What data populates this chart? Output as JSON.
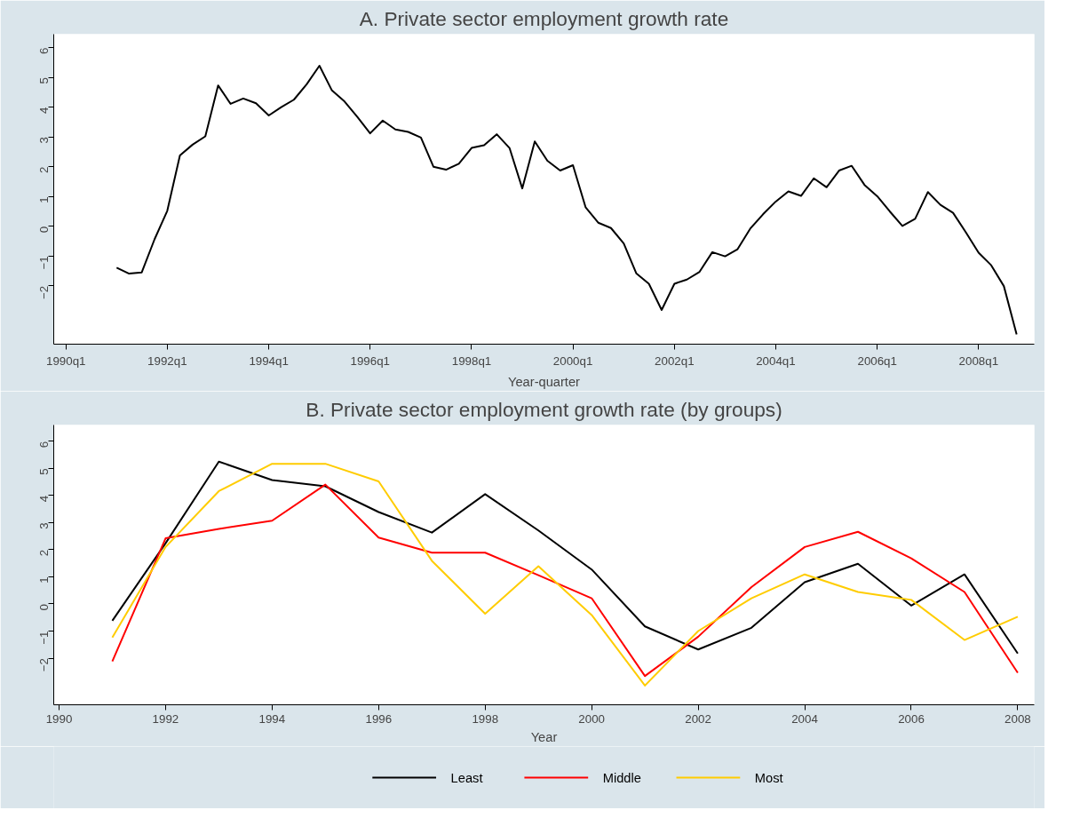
{
  "chart_data": [
    {
      "type": "line",
      "title": "A. Private sector employment growth rate",
      "xlabel": "Year-quarter",
      "x": [
        "1991-01",
        "1991-04",
        "1991-07",
        "1991-10",
        "1992-01",
        "1992-04",
        "1992-07",
        "1992-10",
        "1993-01",
        "1993-04",
        "1993-07",
        "1993-10",
        "1994-01",
        "1994-04",
        "1994-07",
        "1994-10",
        "1995-01",
        "1995-04",
        "1995-07",
        "1995-10",
        "1996-01",
        "1996-04",
        "1996-07",
        "1996-10",
        "1997-01",
        "1997-04",
        "1997-07",
        "1997-10",
        "1998-01",
        "1998-04",
        "1998-07",
        "1998-10",
        "1999-01",
        "1999-04",
        "1999-07",
        "1999-10",
        "2000-01",
        "2000-04",
        "2000-07",
        "2000-10",
        "2001-01",
        "2001-04",
        "2001-07",
        "2001-10",
        "2002-01",
        "2002-04",
        "2002-07",
        "2002-10",
        "2003-01",
        "2003-04",
        "2003-07",
        "2003-10",
        "2004-01",
        "2004-04",
        "2004-07",
        "2004-10",
        "2005-01",
        "2005-04",
        "2005-07",
        "2005-10",
        "2006-01",
        "2006-04",
        "2006-07",
        "2006-10",
        "2007-01",
        "2007-04",
        "2007-07",
        "2007-10",
        "2008-01",
        "2008-04",
        "2008-07",
        "2008-10"
      ],
      "series": [
        {
          "color": "#000000",
          "values": [
            -1.39,
            -1.59,
            -1.55,
            -0.44,
            0.52,
            2.38,
            2.74,
            3.02,
            4.73,
            4.11,
            4.29,
            4.13,
            3.72,
            4.0,
            4.25,
            4.77,
            5.39,
            4.56,
            4.19,
            3.67,
            3.12,
            3.55,
            3.25,
            3.17,
            2.98,
            2.0,
            1.9,
            2.1,
            2.63,
            2.72,
            3.09,
            2.63,
            1.27,
            2.85,
            2.2,
            1.87,
            2.05,
            0.64,
            0.12,
            -0.06,
            -0.58,
            -1.58,
            -1.93,
            -2.81,
            -1.93,
            -1.79,
            -1.53,
            -0.87,
            -1.01,
            -0.77,
            -0.08,
            0.4,
            0.83,
            1.17,
            1.02,
            1.61,
            1.31,
            1.87,
            2.03,
            1.39,
            1.01,
            0.5,
            0.01,
            0.25,
            1.15,
            0.72,
            0.45,
            -0.2,
            -0.89,
            -1.31,
            -2.01,
            -3.63
          ]
        }
      ],
      "xlim": [
        "1989-10-05",
        "2009-02-05"
      ],
      "xticks": [
        {
          "value": "1990-01",
          "label": "1990q1"
        },
        {
          "value": "1992-01",
          "label": "1992q1"
        },
        {
          "value": "1994-01",
          "label": "1994q1"
        },
        {
          "value": "1996-01",
          "label": "1996q1"
        },
        {
          "value": "1998-01",
          "label": "1998q1"
        },
        {
          "value": "2000-01",
          "label": "2000q1"
        },
        {
          "value": "2002-01",
          "label": "2002q1"
        },
        {
          "value": "2004-01",
          "label": "2004q1"
        },
        {
          "value": "2006-01",
          "label": "2006q1"
        },
        {
          "value": "2008-01",
          "label": "2008q1"
        }
      ],
      "ylim": [
        -3.96,
        6.45
      ],
      "yticks": [
        -2,
        -1,
        0,
        1,
        2,
        3,
        4,
        5,
        6
      ],
      "grid": false,
      "legend": false,
      "line_style": "solid"
    },
    {
      "type": "line",
      "title": "B. Private sector employment growth rate (by groups)",
      "xlabel": "Year",
      "x": [
        1991,
        1992,
        1993,
        1994,
        1995,
        1996,
        1997,
        1998,
        1999,
        2000,
        2001,
        2002,
        2003,
        2004,
        2005,
        2006,
        2007,
        2008
      ],
      "series": [
        {
          "name": "Least",
          "color": "#000000",
          "values": [
            -0.62,
            2.24,
            5.25,
            4.57,
            4.34,
            3.39,
            2.63,
            4.05,
            2.71,
            1.27,
            -0.83,
            -1.68,
            -0.88,
            0.8,
            1.48,
            -0.06,
            1.09,
            -1.83
          ]
        },
        {
          "name": "Middle",
          "color": "#ff0000",
          "values": [
            -2.12,
            2.42,
            2.77,
            3.07,
            4.4,
            2.45,
            1.89,
            1.89,
            1.06,
            0.21,
            -2.66,
            -1.21,
            0.62,
            2.1,
            2.66,
            1.68,
            0.44,
            -2.54
          ]
        },
        {
          "name": "Most",
          "color": "#ffcc00",
          "values": [
            -1.24,
            2.1,
            4.16,
            5.17,
            5.17,
            4.52,
            1.59,
            -0.36,
            1.39,
            -0.41,
            -3.01,
            -1.0,
            0.21,
            1.09,
            0.44,
            0.15,
            -1.33,
            -0.47
          ]
        }
      ],
      "xlim": [
        1989.9,
        2008.31
      ],
      "xticks": [
        1990,
        1992,
        1994,
        1996,
        1998,
        2000,
        2002,
        2004,
        2006,
        2008
      ],
      "ylim": [
        -3.72,
        6.6
      ],
      "yticks": [
        -2,
        -1,
        0,
        1,
        2,
        3,
        4,
        5,
        6
      ],
      "grid": false,
      "legend": "bottom",
      "line_style": "solid"
    }
  ]
}
